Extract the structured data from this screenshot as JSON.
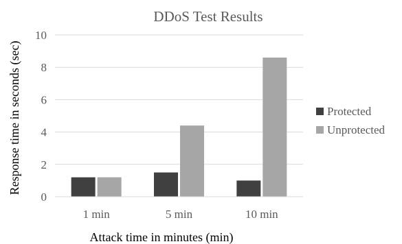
{
  "chart_data": {
    "type": "bar",
    "title": "DDoS Test Results",
    "xlabel": "Attack time in minutes (min)",
    "ylabel": "Response time in seconds (sec)",
    "categories": [
      "1 min",
      "5 min",
      "10 min"
    ],
    "series": [
      {
        "name": "Protected",
        "color": "#404040",
        "values": [
          1.2,
          1.5,
          1.0
        ]
      },
      {
        "name": "Unprotected",
        "color": "#a6a6a6",
        "values": [
          1.2,
          4.4,
          8.6
        ]
      }
    ],
    "ylim": [
      0,
      10
    ],
    "yticks": [
      0,
      2,
      4,
      6,
      8,
      10
    ],
    "grid": true,
    "legend_position": "right"
  }
}
